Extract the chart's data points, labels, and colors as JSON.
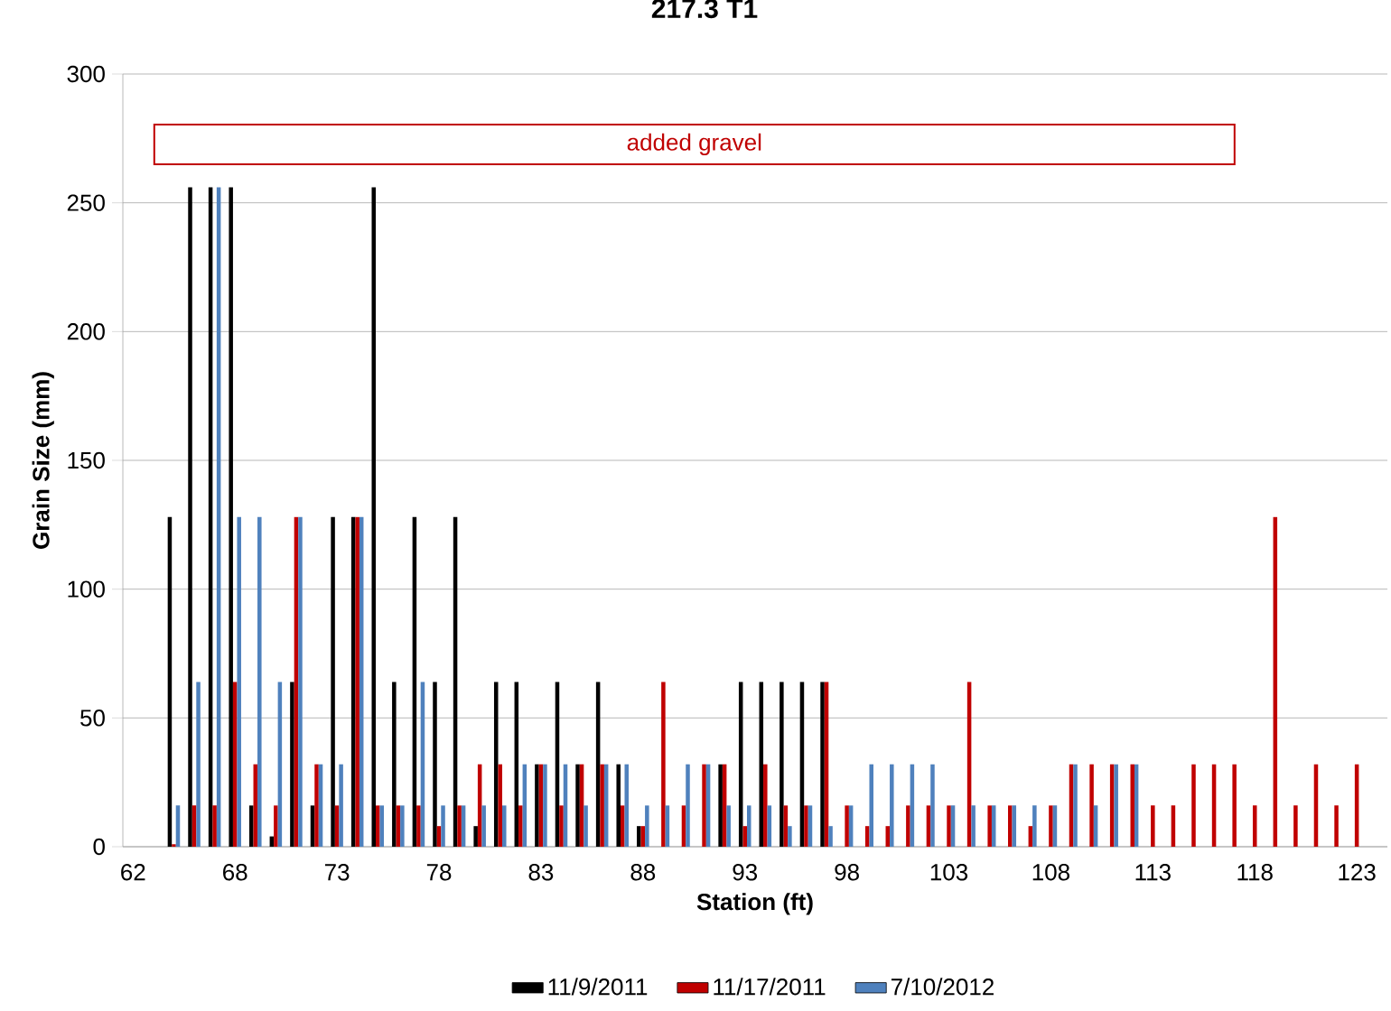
{
  "chart_data": {
    "type": "bar",
    "title": "217.3 T1",
    "xlabel": "Station (ft)",
    "ylabel": "Grain Size (mm)",
    "categories": [
      "62",
      null,
      null,
      null,
      null,
      "68",
      null,
      null,
      null,
      null,
      "73",
      null,
      null,
      null,
      null,
      "78",
      null,
      null,
      null,
      null,
      "83",
      null,
      null,
      null,
      null,
      "88",
      null,
      null,
      null,
      null,
      "93",
      null,
      null,
      null,
      null,
      "98",
      null,
      null,
      null,
      null,
      "103",
      null,
      null,
      null,
      null,
      "108",
      null,
      null,
      null,
      null,
      "113",
      null,
      null,
      null,
      null,
      "118",
      null,
      null,
      null,
      null,
      "123",
      null
    ],
    "series": [
      {
        "name": "11/9/2011",
        "color": "#000000",
        "values": [
          null,
          null,
          128,
          256,
          256,
          256,
          16,
          4,
          64,
          16,
          128,
          128,
          256,
          64,
          128,
          64,
          128,
          8,
          64,
          64,
          32,
          64,
          32,
          64,
          32,
          8,
          null,
          null,
          null,
          32,
          64,
          64,
          64,
          64,
          64,
          null,
          null,
          null,
          null,
          null,
          null,
          null,
          null,
          null,
          null,
          null,
          null,
          null,
          null,
          null,
          null,
          null,
          null,
          null,
          null,
          null,
          null,
          null,
          null,
          null,
          null,
          null
        ]
      },
      {
        "name": "11/17/2011",
        "color": "#c00000",
        "values": [
          null,
          null,
          1,
          16,
          16,
          64,
          32,
          16,
          128,
          32,
          16,
          128,
          16,
          16,
          16,
          8,
          16,
          32,
          32,
          16,
          32,
          16,
          32,
          32,
          16,
          8,
          64,
          16,
          32,
          32,
          8,
          32,
          16,
          16,
          64,
          16,
          8,
          8,
          16,
          16,
          16,
          64,
          16,
          16,
          8,
          16,
          32,
          32,
          32,
          32,
          16,
          16,
          32,
          32,
          32,
          16,
          128,
          16,
          32,
          16,
          32,
          null
        ]
      },
      {
        "name": "7/10/2012",
        "color": "#4f81bd",
        "values": [
          null,
          null,
          16,
          64,
          256,
          128,
          128,
          64,
          128,
          32,
          32,
          128,
          16,
          16,
          64,
          16,
          16,
          16,
          16,
          32,
          32,
          32,
          16,
          32,
          32,
          16,
          16,
          32,
          32,
          16,
          16,
          16,
          8,
          16,
          8,
          16,
          32,
          32,
          32,
          32,
          16,
          16,
          16,
          16,
          16,
          16,
          32,
          16,
          32,
          32,
          null,
          null,
          null,
          null,
          null,
          null,
          null,
          null,
          null,
          null,
          null,
          null
        ]
      }
    ],
    "ylim": [
      0,
      300
    ],
    "yticks": [
      0,
      50,
      100,
      150,
      200,
      250,
      300
    ],
    "grid": "y",
    "legend": "bottom",
    "annotations": [
      "added gravel"
    ]
  }
}
